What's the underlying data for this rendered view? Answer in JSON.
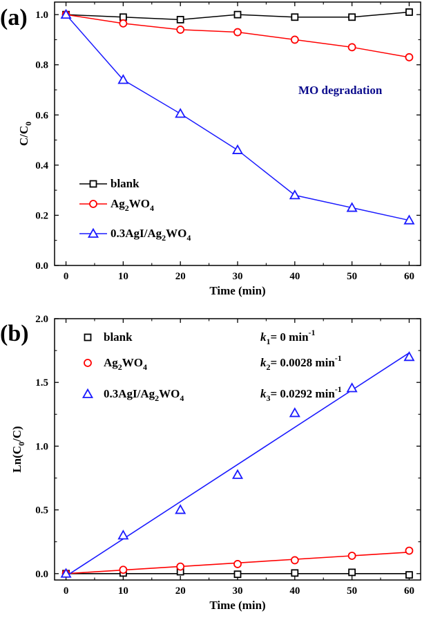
{
  "chart_data": [
    {
      "type": "line",
      "panel_label": "(a)",
      "xlabel": "Time (min)",
      "ylabel": {
        "base": "C/C",
        "sub": "0"
      },
      "xlim": [
        -2,
        62
      ],
      "ylim": [
        0.0,
        1.05
      ],
      "xticks": [
        0,
        10,
        20,
        30,
        40,
        50,
        60
      ],
      "yticks": [
        0.0,
        0.2,
        0.4,
        0.6,
        0.8,
        1.0
      ],
      "ytick_labels": [
        "0.0",
        "0.2",
        "0.4",
        "0.6",
        "0.8",
        "1.0"
      ],
      "annotation": "MO degradation",
      "legend_position": "bottom-left",
      "x": [
        0,
        10,
        20,
        30,
        40,
        50,
        60
      ],
      "series": [
        {
          "name": "blank",
          "label_parts": [
            {
              "t": "blank",
              "sub": ""
            }
          ],
          "marker": "square",
          "color": "#000000",
          "values": [
            1.0,
            0.99,
            0.98,
            1.0,
            0.99,
            0.99,
            1.01
          ]
        },
        {
          "name": "Ag2WO4",
          "label_parts": [
            {
              "t": "Ag",
              "sub": "2"
            },
            {
              "t": "WO",
              "sub": "4"
            }
          ],
          "marker": "circle",
          "color": "#ff0000",
          "values": [
            1.0,
            0.965,
            0.94,
            0.93,
            0.9,
            0.87,
            0.83
          ]
        },
        {
          "name": "0.3AgI/Ag2WO4",
          "label_parts": [
            {
              "t": "0.3AgI/Ag",
              "sub": "2"
            },
            {
              "t": "WO",
              "sub": "4"
            }
          ],
          "marker": "triangle",
          "color": "#1a1aff",
          "values": [
            1.0,
            0.74,
            0.605,
            0.46,
            0.28,
            0.23,
            0.18
          ]
        }
      ]
    },
    {
      "type": "scatter",
      "panel_label": "(b)",
      "xlabel": "Time (min)",
      "ylabel": {
        "pre": "Ln(C",
        "sub": "0",
        "post": "/C)"
      },
      "xlim": [
        -2,
        62
      ],
      "ylim": [
        -0.05,
        2.0
      ],
      "xticks": [
        0,
        10,
        20,
        30,
        40,
        50,
        60
      ],
      "yticks": [
        0.0,
        0.5,
        1.0,
        1.5,
        2.0
      ],
      "ytick_labels": [
        "0.0",
        "0.5",
        "1.0",
        "1.5",
        "2.0"
      ],
      "legend_position": "top-left",
      "x": [
        0,
        10,
        20,
        30,
        40,
        50,
        60
      ],
      "series": [
        {
          "name": "blank",
          "label_parts": [
            {
              "t": "blank",
              "sub": ""
            }
          ],
          "marker": "square",
          "color": "#000000",
          "values": [
            0.0,
            0.005,
            0.015,
            -0.005,
            0.005,
            0.01,
            -0.01
          ],
          "fit": {
            "from": [
              0,
              0.0
            ],
            "to": [
              60,
              0.0
            ]
          },
          "rate": {
            "k": "k",
            "sub": "1",
            "text": "= 0 min",
            "sup": "-1"
          }
        },
        {
          "name": "Ag2WO4",
          "label_parts": [
            {
              "t": "Ag",
              "sub": "2"
            },
            {
              "t": "WO",
              "sub": "4"
            }
          ],
          "marker": "circle",
          "color": "#ff0000",
          "values": [
            0.0,
            0.03,
            0.055,
            0.075,
            0.105,
            0.14,
            0.18
          ],
          "fit": {
            "from": [
              0,
              0.0
            ],
            "to": [
              60,
              0.168
            ]
          },
          "rate": {
            "k": "k",
            "sub": "2",
            "text": "= 0.0028 min",
            "sup": "-1"
          }
        },
        {
          "name": "0.3AgI/Ag2WO4",
          "label_parts": [
            {
              "t": "0.3AgI/Ag",
              "sub": "2"
            },
            {
              "t": "WO",
              "sub": "4"
            }
          ],
          "marker": "triangle",
          "color": "#1a1aff",
          "values": [
            0.0,
            0.3,
            0.5,
            0.775,
            1.26,
            1.455,
            1.7
          ],
          "fit": {
            "from": [
              0,
              -0.02
            ],
            "to": [
              60,
              1.732
            ]
          },
          "rate": {
            "k": "k",
            "sub": "3",
            "text": "= 0.0292 min",
            "sup": "-1"
          }
        }
      ]
    }
  ]
}
